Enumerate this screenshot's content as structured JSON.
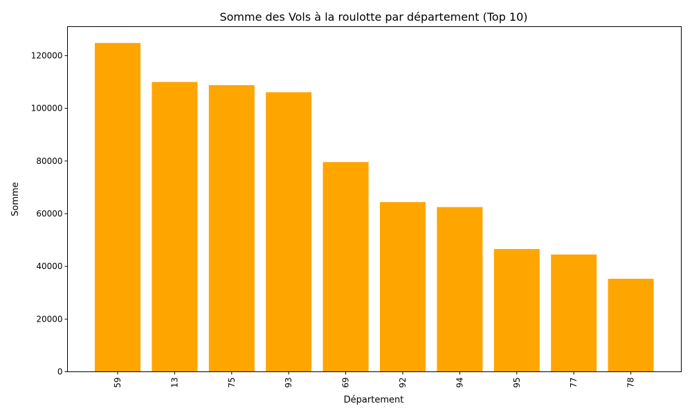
{
  "chart_data": {
    "type": "bar",
    "title": "Somme des Vols à la roulotte par département (Top 10)",
    "xlabel": "Département",
    "ylabel": "Somme",
    "categories": [
      "59",
      "13",
      "75",
      "93",
      "69",
      "92",
      "94",
      "95",
      "77",
      "78"
    ],
    "values": [
      124800,
      110000,
      108800,
      106100,
      79600,
      64400,
      62500,
      46600,
      44500,
      35300
    ],
    "ylim": [
      0,
      131000
    ],
    "yticks": [
      0,
      20000,
      40000,
      60000,
      80000,
      100000,
      120000
    ],
    "x_tick_rotation": "vertical",
    "grid": false,
    "legend": "none",
    "bar_color": "#FFA500"
  }
}
